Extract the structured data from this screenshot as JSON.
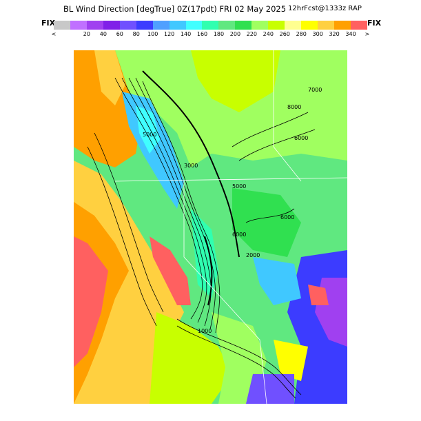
{
  "title": {
    "main": "BL Wind Direction [degTrue] 0Z(17pdt) FRI 02 May 2025",
    "forecast": "12hrFcst@1333z RAP"
  },
  "colorbar": {
    "left_label": "FIX",
    "right_label": "FIX",
    "swatches": [
      {
        "label": "<",
        "color": "#c8c8c8"
      },
      {
        "label": "20",
        "color": "#c070ff"
      },
      {
        "label": "40",
        "color": "#a040f0"
      },
      {
        "label": "60",
        "color": "#8020e8"
      },
      {
        "label": "80",
        "color": "#7050ff"
      },
      {
        "label": "100",
        "color": "#3c3cff"
      },
      {
        "label": "120",
        "color": "#50a0ff"
      },
      {
        "label": "140",
        "color": "#40c8ff"
      },
      {
        "label": "160",
        "color": "#40ffff"
      },
      {
        "label": "180",
        "color": "#30ffb0"
      },
      {
        "label": "200",
        "color": "#60e880"
      },
      {
        "label": "220",
        "color": "#30e050"
      },
      {
        "label": "240",
        "color": "#a0ff60"
      },
      {
        "label": "260",
        "color": "#c8ff00"
      },
      {
        "label": "280",
        "color": "#ffff90"
      },
      {
        "label": "300",
        "color": "#ffff00"
      },
      {
        "label": "320",
        "color": "#ffd040"
      },
      {
        "label": "340",
        "color": "#ffa000"
      },
      {
        "label": ">",
        "color": "#ff6060"
      }
    ]
  },
  "map": {
    "contour_labels": [
      "8000",
      "6000",
      "6000",
      "5000",
      "3000",
      "2000",
      "1000",
      "6000",
      "5000",
      "7000"
    ]
  }
}
